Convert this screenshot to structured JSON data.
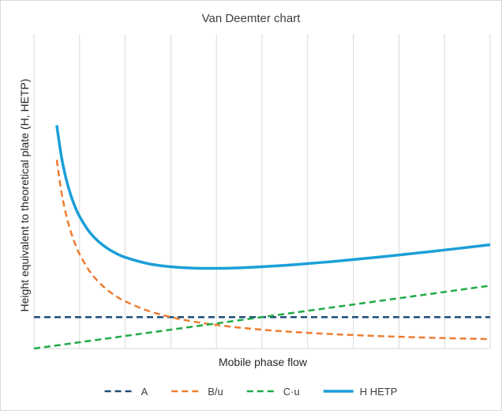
{
  "chart_data": {
    "type": "line",
    "title": "Van Deemter chart",
    "xlabel": "Mobile phase flow",
    "ylabel": "Height equivalent to theoretical plate (H, HETP)",
    "xlim": [
      0,
      10
    ],
    "ylim": [
      0,
      10
    ],
    "grid": {
      "vertical": true,
      "horizontal": false
    },
    "legend_position": "bottom",
    "series": [
      {
        "name": "A",
        "color": "#1f4e79",
        "style": "dashed",
        "x": [
          0,
          10
        ],
        "y": [
          1.0,
          1.0
        ]
      },
      {
        "name": "B/u",
        "color": "#ed7d31",
        "style": "dashed",
        "x": [
          0.5,
          0.6,
          0.7,
          0.8,
          0.9,
          1.0,
          1.2,
          1.4,
          1.6,
          1.8,
          2.0,
          2.5,
          3.0,
          3.5,
          4.0,
          4.5,
          5.0,
          5.5,
          6.0,
          6.5,
          7.0,
          7.5,
          8.0,
          8.5,
          9.0,
          9.5,
          10.0
        ],
        "y": [
          6.0,
          5.0,
          4.286,
          3.75,
          3.333,
          3.0,
          2.5,
          2.143,
          1.875,
          1.667,
          1.5,
          1.2,
          1.0,
          0.857,
          0.75,
          0.667,
          0.6,
          0.545,
          0.5,
          0.462,
          0.429,
          0.4,
          0.375,
          0.353,
          0.333,
          0.316,
          0.3
        ]
      },
      {
        "name": "C·u",
        "color": "#1fab48",
        "style": "dashed",
        "x": [
          0,
          10
        ],
        "y": [
          0,
          2.0
        ]
      },
      {
        "name": "H HETP",
        "color": "#1b9fd8",
        "style": "solid",
        "x": [
          0.5,
          0.6,
          0.7,
          0.8,
          0.9,
          1.0,
          1.2,
          1.4,
          1.6,
          1.8,
          2.0,
          2.5,
          3.0,
          3.5,
          4.0,
          4.5,
          5.0,
          5.5,
          6.0,
          6.5,
          7.0,
          7.5,
          8.0,
          8.5,
          9.0,
          9.5,
          10.0
        ],
        "y": [
          7.1,
          6.12,
          5.426,
          4.91,
          4.513,
          4.2,
          3.74,
          3.423,
          3.195,
          3.027,
          2.9,
          2.7,
          2.6,
          2.557,
          2.55,
          2.567,
          2.6,
          2.645,
          2.7,
          2.762,
          2.829,
          2.9,
          2.975,
          3.053,
          3.133,
          3.216,
          3.3
        ]
      }
    ]
  }
}
